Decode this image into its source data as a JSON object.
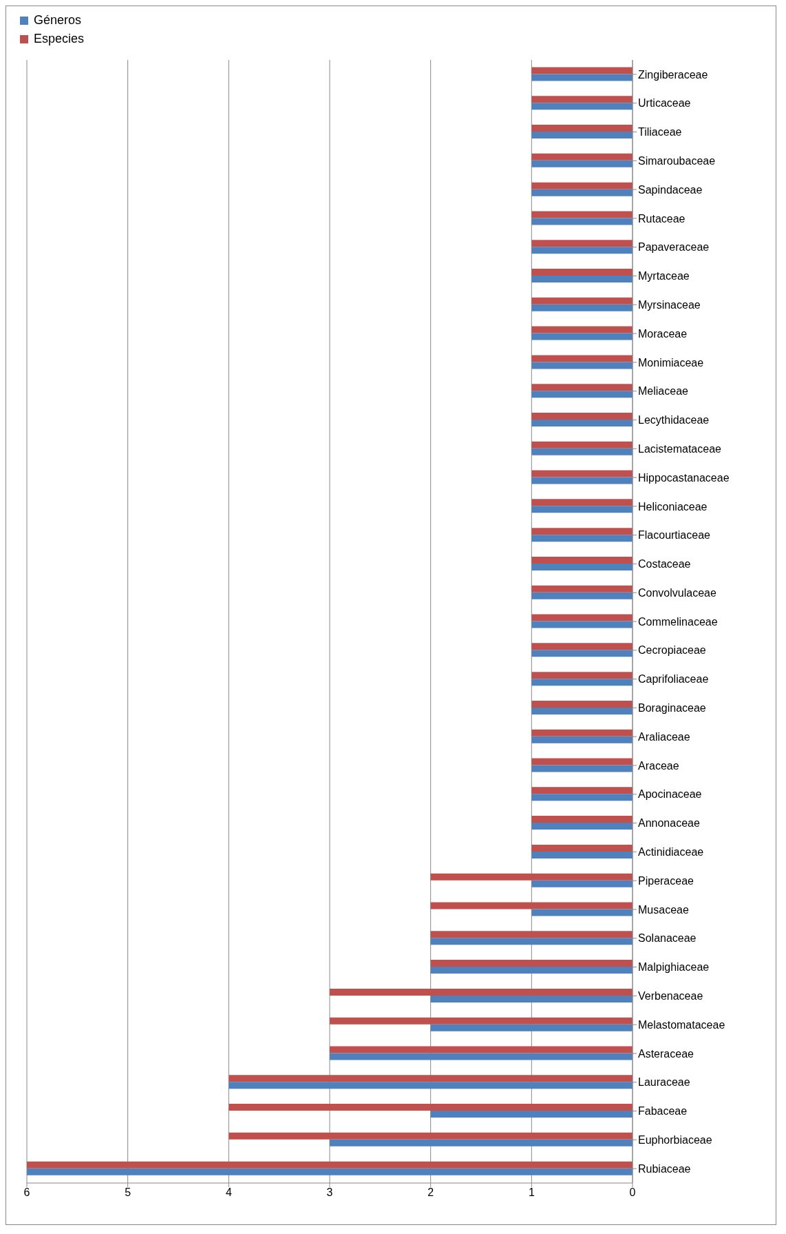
{
  "chart_data": {
    "type": "bar",
    "orientation": "horizontal",
    "categories": [
      "Zingiberaceae",
      "Urticaceae",
      "Tiliaceae",
      "Simaroubaceae",
      "Sapindaceae",
      "Rutaceae",
      "Papaveraceae",
      "Myrtaceae",
      "Myrsinaceae",
      "Moraceae",
      "Monimiaceae",
      "Meliaceae",
      "Lecythidaceae",
      "Lacistemataceae",
      "Hippocastanaceae",
      "Heliconiaceae",
      "Flacourtiaceae",
      "Costaceae",
      "Convolvulaceae",
      "Commelinaceae",
      "Cecropiaceae",
      "Caprifoliaceae",
      "Boraginaceae",
      "Araliaceae",
      "Araceae",
      "Apocinaceae",
      "Annonaceae",
      "Actinidiaceae",
      "Piperaceae",
      "Musaceae",
      "Solanaceae",
      "Malpighiaceae",
      "Verbenaceae",
      "Melastomataceae",
      "Asteraceae",
      "Lauraceae",
      "Fabaceae",
      "Euphorbiaceae",
      "Rubiaceae"
    ],
    "series": [
      {
        "name": "Géneros",
        "color": "#4f81bd",
        "values": [
          1,
          1,
          1,
          1,
          1,
          1,
          1,
          1,
          1,
          1,
          1,
          1,
          1,
          1,
          1,
          1,
          1,
          1,
          1,
          1,
          1,
          1,
          1,
          1,
          1,
          1,
          1,
          1,
          1,
          1,
          2,
          2,
          2,
          2,
          3,
          4,
          2,
          3,
          6
        ]
      },
      {
        "name": "Especies",
        "color": "#c0504d",
        "values": [
          1,
          1,
          1,
          1,
          1,
          1,
          1,
          1,
          1,
          1,
          1,
          1,
          1,
          1,
          1,
          1,
          1,
          1,
          1,
          1,
          1,
          1,
          1,
          1,
          1,
          1,
          1,
          1,
          2,
          2,
          2,
          2,
          3,
          3,
          3,
          4,
          4,
          4,
          6
        ]
      }
    ],
    "xlim": [
      6,
      0
    ],
    "xticks": [
      6,
      5,
      4,
      3,
      2,
      1,
      0
    ],
    "grid": "x",
    "legend": "top left"
  }
}
